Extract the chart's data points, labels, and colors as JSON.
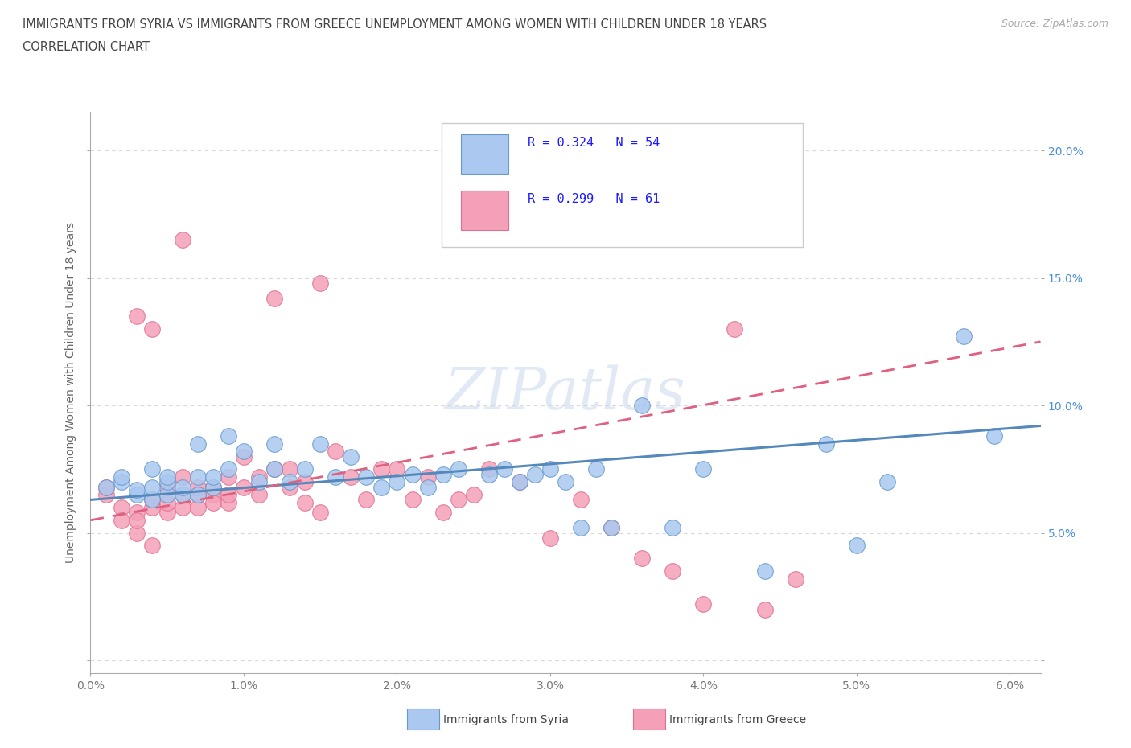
{
  "title_line1": "IMMIGRANTS FROM SYRIA VS IMMIGRANTS FROM GREECE UNEMPLOYMENT AMONG WOMEN WITH CHILDREN UNDER 18 YEARS",
  "title_line2": "CORRELATION CHART",
  "source_text": "Source: ZipAtlas.com",
  "ylabel": "Unemployment Among Women with Children Under 18 years",
  "xlim": [
    0.0,
    0.062
  ],
  "ylim": [
    -0.005,
    0.215
  ],
  "xtick_positions": [
    0.0,
    0.01,
    0.02,
    0.03,
    0.04,
    0.05,
    0.06
  ],
  "xtick_labels": [
    "0.0%",
    "1.0%",
    "2.0%",
    "3.0%",
    "4.0%",
    "5.0%",
    "6.0%"
  ],
  "ytick_positions": [
    0.0,
    0.05,
    0.1,
    0.15,
    0.2
  ],
  "ytick_labels_left": [
    "",
    "",
    "",
    "",
    ""
  ],
  "ytick_labels_right": [
    "",
    "5.0%",
    "10.0%",
    "15.0%",
    "20.0%"
  ],
  "syria_color": "#aac8f0",
  "greece_color": "#f4a0b8",
  "syria_edge": "#6699cc",
  "greece_edge": "#e07090",
  "syria_R": 0.324,
  "syria_N": 54,
  "greece_R": 0.299,
  "greece_N": 61,
  "syria_trend_x": [
    0.0,
    0.062
  ],
  "syria_trend_y": [
    0.063,
    0.092
  ],
  "greece_trend_x": [
    0.0,
    0.062
  ],
  "greece_trend_y": [
    0.055,
    0.125
  ],
  "watermark": "ZIPatlas",
  "background_color": "#ffffff",
  "grid_color": "#d8d8d8",
  "title_color": "#444444",
  "legend_text_color": "#1a1aff",
  "syria_scatter_x": [
    0.001,
    0.002,
    0.002,
    0.003,
    0.003,
    0.004,
    0.004,
    0.004,
    0.005,
    0.005,
    0.005,
    0.006,
    0.006,
    0.007,
    0.007,
    0.007,
    0.008,
    0.008,
    0.009,
    0.009,
    0.01,
    0.011,
    0.012,
    0.012,
    0.013,
    0.014,
    0.015,
    0.016,
    0.017,
    0.018,
    0.019,
    0.02,
    0.021,
    0.022,
    0.023,
    0.024,
    0.026,
    0.027,
    0.028,
    0.029,
    0.03,
    0.031,
    0.032,
    0.033,
    0.034,
    0.036,
    0.038,
    0.04,
    0.044,
    0.048,
    0.05,
    0.052,
    0.057,
    0.059
  ],
  "syria_scatter_y": [
    0.068,
    0.07,
    0.072,
    0.065,
    0.067,
    0.063,
    0.068,
    0.075,
    0.065,
    0.07,
    0.072,
    0.065,
    0.068,
    0.085,
    0.072,
    0.065,
    0.068,
    0.072,
    0.088,
    0.075,
    0.082,
    0.07,
    0.075,
    0.085,
    0.07,
    0.075,
    0.085,
    0.072,
    0.08,
    0.072,
    0.068,
    0.07,
    0.073,
    0.068,
    0.073,
    0.075,
    0.073,
    0.075,
    0.07,
    0.073,
    0.075,
    0.07,
    0.052,
    0.075,
    0.052,
    0.1,
    0.052,
    0.075,
    0.035,
    0.085,
    0.045,
    0.07,
    0.127,
    0.088
  ],
  "greece_scatter_x": [
    0.001,
    0.001,
    0.002,
    0.002,
    0.003,
    0.003,
    0.003,
    0.004,
    0.004,
    0.004,
    0.005,
    0.005,
    0.005,
    0.006,
    0.006,
    0.006,
    0.007,
    0.007,
    0.007,
    0.008,
    0.008,
    0.008,
    0.009,
    0.009,
    0.009,
    0.01,
    0.01,
    0.011,
    0.011,
    0.012,
    0.012,
    0.013,
    0.013,
    0.014,
    0.014,
    0.015,
    0.015,
    0.016,
    0.017,
    0.018,
    0.019,
    0.02,
    0.021,
    0.022,
    0.023,
    0.024,
    0.025,
    0.026,
    0.028,
    0.03,
    0.032,
    0.034,
    0.036,
    0.038,
    0.04,
    0.042,
    0.044,
    0.046,
    0.003,
    0.004,
    0.006
  ],
  "greece_scatter_y": [
    0.065,
    0.068,
    0.06,
    0.055,
    0.058,
    0.05,
    0.055,
    0.06,
    0.045,
    0.063,
    0.058,
    0.062,
    0.068,
    0.06,
    0.065,
    0.072,
    0.065,
    0.068,
    0.06,
    0.065,
    0.062,
    0.068,
    0.062,
    0.065,
    0.072,
    0.068,
    0.08,
    0.072,
    0.065,
    0.075,
    0.142,
    0.075,
    0.068,
    0.07,
    0.062,
    0.148,
    0.058,
    0.082,
    0.072,
    0.063,
    0.075,
    0.075,
    0.063,
    0.072,
    0.058,
    0.063,
    0.065,
    0.075,
    0.07,
    0.048,
    0.063,
    0.052,
    0.04,
    0.035,
    0.022,
    0.13,
    0.02,
    0.032,
    0.135,
    0.13,
    0.165
  ]
}
